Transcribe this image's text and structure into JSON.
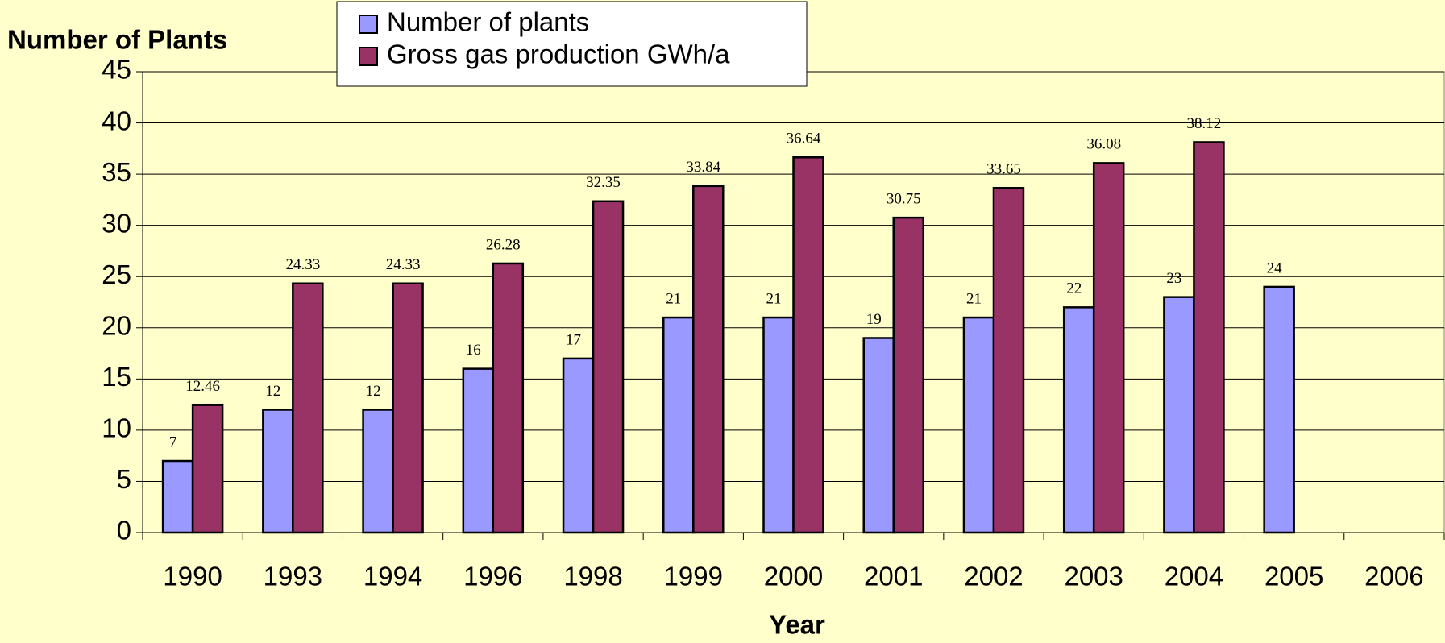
{
  "chart_data": {
    "type": "bar",
    "y_label": "Number of Plants",
    "x_label": "Year",
    "categories": [
      "1990",
      "1993",
      "1994",
      "1996",
      "1998",
      "1999",
      "2000",
      "2001",
      "2002",
      "2003",
      "2004",
      "2005",
      "2006"
    ],
    "series": [
      {
        "name": "Number of plants",
        "color": "#9999ff",
        "values": [
          7,
          12,
          12,
          16,
          17,
          21,
          21,
          19,
          21,
          22,
          23,
          24,
          null
        ]
      },
      {
        "name": "Gross gas production GWh/a",
        "color": "#993366",
        "values": [
          12.46,
          24.33,
          24.33,
          26.28,
          32.35,
          33.84,
          36.64,
          30.75,
          33.65,
          36.08,
          38.12,
          null,
          null
        ]
      }
    ],
    "ylim": [
      0,
      45
    ],
    "yticks": [
      0,
      5,
      10,
      15,
      20,
      25,
      30,
      35,
      40,
      45
    ],
    "grid": true
  }
}
